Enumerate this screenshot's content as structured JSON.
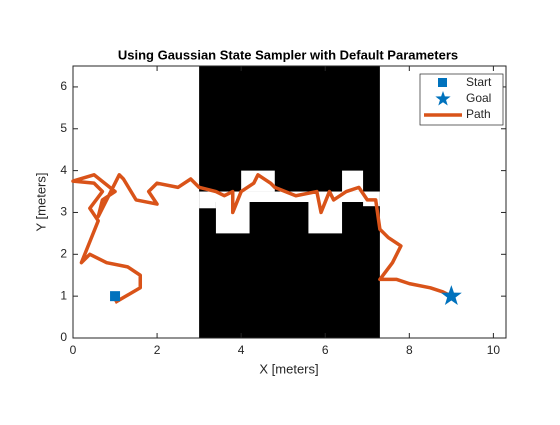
{
  "chart_data": {
    "type": "path",
    "title": "Using Gaussian State Sampler with Default Parameters",
    "x_label": "X [meters]",
    "y_label": "Y [meters]",
    "xlim": [
      0,
      10.3
    ],
    "ylim": [
      0,
      6.5
    ],
    "xticks": [
      0,
      2,
      4,
      6,
      8,
      10
    ],
    "yticks": [
      0,
      1,
      2,
      3,
      4,
      5,
      6
    ],
    "occupied": [
      [
        3,
        0,
        7.3,
        6.5
      ]
    ],
    "free": [
      [
        3,
        3.25,
        7.3,
        3.5
      ],
      [
        3.4,
        2.5,
        4.2,
        3.25
      ],
      [
        4,
        3.5,
        4.8,
        4
      ],
      [
        5.6,
        2.5,
        6.4,
        3.25
      ],
      [
        6.4,
        3.5,
        6.9,
        4
      ],
      [
        3,
        3.1,
        3.4,
        3.25
      ],
      [
        6.9,
        3.15,
        7.3,
        3.25
      ]
    ],
    "start": {
      "name": "Start",
      "x": 1,
      "y": 1,
      "color": "#0072BD"
    },
    "goal": {
      "name": "Goal",
      "x": 9,
      "y": 1,
      "color": "#0072BD"
    },
    "path": {
      "name": "Path",
      "color": "#D95319",
      "x": [
        1.0,
        1.6,
        1.6,
        1.3,
        0.8,
        0.4,
        0.2,
        0.4,
        0.6,
        0.4,
        0.7,
        0.5,
        0.0,
        0.5,
        1.0,
        0.7,
        0.6,
        1.0,
        1.1,
        1.2,
        1.5,
        2.0,
        1.8,
        2.0,
        2.5,
        2.8,
        3.0,
        3.4,
        3.6,
        3.8,
        3.8,
        4.0,
        4.3,
        4.4,
        4.7,
        4.8,
        5.3,
        5.8,
        5.9,
        6.1,
        6.2,
        6.5,
        6.8,
        7.0,
        7.2,
        7.3,
        7.5,
        7.8,
        7.6,
        7.3,
        7.7,
        8.0,
        8.5,
        8.8,
        9.0
      ],
      "y": [
        0.85,
        1.2,
        1.5,
        1.7,
        1.8,
        2.0,
        1.8,
        2.3,
        2.8,
        3.1,
        3.5,
        3.7,
        3.75,
        3.9,
        3.5,
        3.3,
        2.9,
        3.7,
        3.9,
        3.8,
        3.3,
        3.2,
        3.5,
        3.7,
        3.6,
        3.8,
        3.6,
        3.5,
        3.4,
        3.5,
        3.0,
        3.5,
        3.7,
        3.9,
        3.7,
        3.6,
        3.4,
        3.5,
        3.0,
        3.5,
        3.3,
        3.5,
        3.6,
        3.3,
        3.3,
        2.6,
        2.4,
        2.2,
        1.8,
        1.4,
        1.4,
        1.3,
        1.2,
        1.1,
        1.0
      ]
    }
  }
}
